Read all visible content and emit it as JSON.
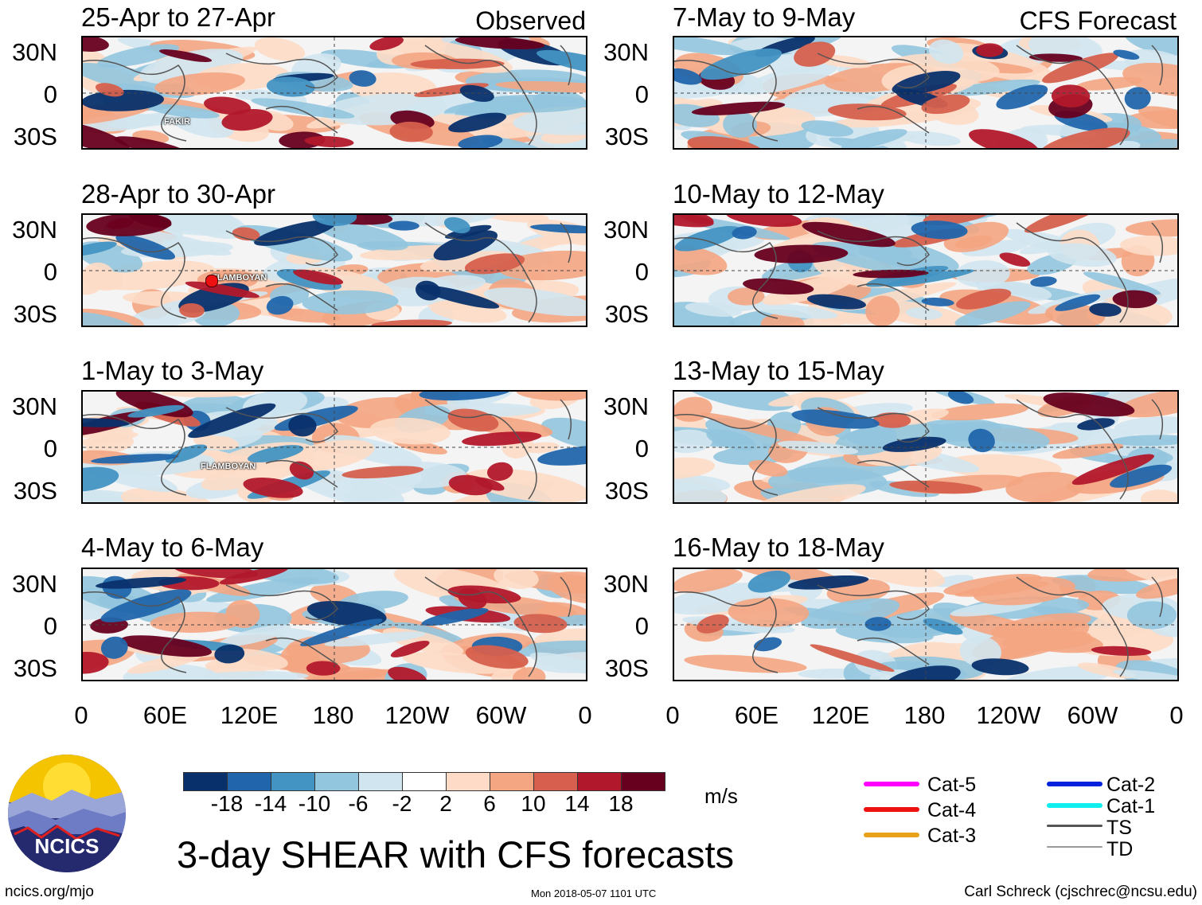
{
  "panels": [
    {
      "title": "25-Apr to 27-Apr",
      "label": "Observed",
      "storm": "FAKIR"
    },
    {
      "title": "28-Apr to 30-Apr",
      "storm": "FLAMBOYAN"
    },
    {
      "title": "1-May to 3-May",
      "storm": "FLAMBOYAN"
    },
    {
      "title": "4-May to 6-May"
    },
    {
      "title": "7-May to 9-May",
      "label": "CFS Forecast"
    },
    {
      "title": "10-May to 12-May"
    },
    {
      "title": "13-May to 15-May"
    },
    {
      "title": "16-May to 18-May"
    }
  ],
  "lat_labels": [
    "30N",
    "0",
    "30S"
  ],
  "lon_labels": [
    "0",
    "60E",
    "120E",
    "180",
    "120W",
    "60W",
    "0"
  ],
  "colorbar": {
    "labels": [
      "-18",
      "-14",
      "-10",
      "-6",
      "-2",
      "2",
      "6",
      "10",
      "14",
      "18"
    ],
    "colors": [
      "#08306b",
      "#2166ac",
      "#4393c3",
      "#92c5de",
      "#d1e5f0",
      "#ffffff",
      "#fddbc7",
      "#f4a582",
      "#d6604d",
      "#b2182b",
      "#67001f"
    ],
    "units": "m/s"
  },
  "legend": {
    "left": [
      {
        "label": "Cat-5",
        "color": "#ff00ff"
      },
      {
        "label": "Cat-4",
        "color": "#ee1111"
      },
      {
        "label": "Cat-3",
        "color": "#e8a21a"
      }
    ],
    "right": [
      {
        "label": "Cat-2",
        "color": "#0022dd"
      },
      {
        "label": "Cat-1",
        "color": "#11eeee"
      },
      {
        "label": "TS",
        "color": "#555555"
      },
      {
        "label": "TD",
        "color": "#999999"
      }
    ]
  },
  "logo_text": "NCICS",
  "main_title": "3-day SHEAR with CFS forecasts",
  "footer": {
    "left": "ncics.org/mjo",
    "center": "Mon 2018-05-07 1101 UTC",
    "right": "Carl Schreck (cjschrec@ncsu.edu)"
  }
}
